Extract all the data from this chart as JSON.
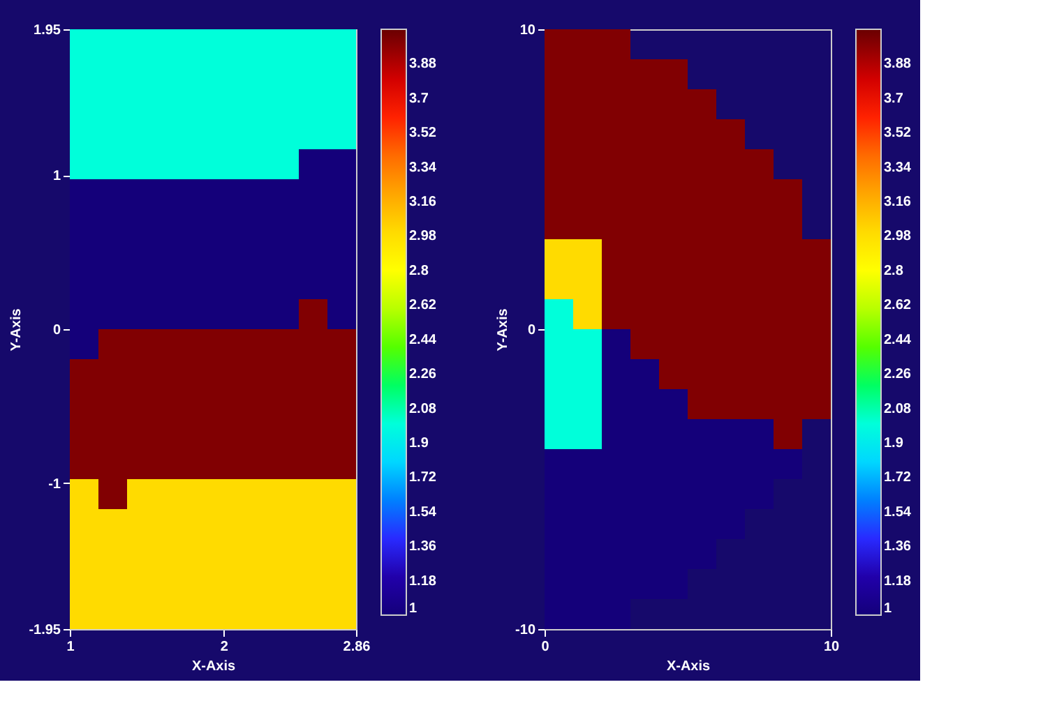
{
  "chart_data": [
    {
      "type": "heatmap",
      "xlabel": "X-Axis",
      "ylabel": "Y-Axis",
      "xlim": [
        1,
        2.86
      ],
      "ylim": [
        -1.95,
        1.95
      ],
      "xticks": [
        1,
        2,
        2.86
      ],
      "yticks": [
        -1.95,
        -1,
        0,
        1,
        1.95
      ],
      "grid": false,
      "clim": [
        1,
        4.06
      ],
      "cticks": [
        1,
        1.18,
        1.36,
        1.54,
        1.72,
        1.9,
        2.08,
        2.26,
        2.44,
        2.62,
        2.8,
        2.98,
        3.16,
        3.34,
        3.52,
        3.7,
        3.88
      ],
      "colors": [
        "#14007a",
        "#1e00a0",
        "#3a00ff",
        "#0060ff",
        "#00b4ff",
        "#00ffff",
        "#00ffb4",
        "#00ff00",
        "#60ff00",
        "#c0ff00",
        "#ffff00",
        "#ffe000",
        "#ffb000",
        "#ff8000",
        "#ff3000",
        "#ff0000",
        "#b00000",
        "#6a0000"
      ],
      "cells": [
        [
          2,
          2,
          2,
          2,
          2,
          2,
          2,
          2,
          2,
          2
        ],
        [
          2,
          2,
          2,
          2,
          2,
          2,
          2,
          2,
          2,
          2
        ],
        [
          2,
          2,
          2,
          2,
          2,
          2,
          2,
          2,
          2,
          2
        ],
        [
          2,
          2,
          2,
          2,
          2,
          2,
          2,
          2,
          2,
          2
        ],
        [
          2,
          2,
          2,
          2,
          2,
          2,
          2,
          2,
          1,
          1
        ],
        [
          1,
          1,
          1,
          1,
          1,
          1,
          1,
          1,
          1,
          1
        ],
        [
          1,
          1,
          1,
          1,
          1,
          1,
          1,
          1,
          1,
          1
        ],
        [
          1,
          1,
          1,
          1,
          1,
          1,
          1,
          1,
          1,
          1
        ],
        [
          1,
          1,
          1,
          1,
          1,
          1,
          1,
          1,
          1,
          1
        ],
        [
          1,
          1,
          1,
          1,
          1,
          1,
          1,
          1,
          4,
          1
        ],
        [
          1,
          4,
          4,
          4,
          4,
          4,
          4,
          4,
          4,
          4
        ],
        [
          4,
          4,
          4,
          4,
          4,
          4,
          4,
          4,
          4,
          4
        ],
        [
          4,
          4,
          4,
          4,
          4,
          4,
          4,
          4,
          4,
          4
        ],
        [
          4,
          4,
          4,
          4,
          4,
          4,
          4,
          4,
          4,
          4
        ],
        [
          4,
          4,
          4,
          4,
          4,
          4,
          4,
          4,
          4,
          4
        ],
        [
          3,
          4,
          3,
          3,
          3,
          3,
          3,
          3,
          3,
          3
        ],
        [
          3,
          3,
          3,
          3,
          3,
          3,
          3,
          3,
          3,
          3
        ],
        [
          3,
          3,
          3,
          3,
          3,
          3,
          3,
          3,
          3,
          3
        ],
        [
          3,
          3,
          3,
          3,
          3,
          3,
          3,
          3,
          3,
          3
        ],
        [
          3,
          3,
          3,
          3,
          3,
          3,
          3,
          3,
          3,
          3
        ]
      ]
    },
    {
      "type": "heatmap",
      "xlabel": "X-Axis",
      "ylabel": "Y-Axis",
      "xlim": [
        0,
        10
      ],
      "ylim": [
        -10,
        10
      ],
      "xticks": [
        0,
        10
      ],
      "yticks": [
        -10,
        0,
        10
      ],
      "grid": false,
      "clim": [
        1,
        4.06
      ],
      "cticks": [
        1,
        1.18,
        1.36,
        1.54,
        1.72,
        1.9,
        2.08,
        2.26,
        2.44,
        2.62,
        2.8,
        2.98,
        3.16,
        3.34,
        3.52,
        3.7,
        3.88
      ],
      "colors": [
        "#14007a",
        "#1e00a0",
        "#3a00ff",
        "#0060ff",
        "#00b4ff",
        "#00ffff",
        "#00ffb4",
        "#00ff00",
        "#60ff00",
        "#c0ff00",
        "#ffff00",
        "#ffe000",
        "#ffb000",
        "#ff8000",
        "#ff3000",
        "#ff0000",
        "#b00000",
        "#6a0000"
      ],
      "cells": [
        [
          4,
          4,
          4,
          null,
          null,
          null,
          null,
          null,
          null,
          null
        ],
        [
          4,
          4,
          4,
          4,
          4,
          null,
          null,
          null,
          null,
          null
        ],
        [
          4,
          4,
          4,
          4,
          4,
          4,
          null,
          null,
          null,
          null
        ],
        [
          4,
          4,
          4,
          4,
          4,
          4,
          4,
          null,
          null,
          null
        ],
        [
          4,
          4,
          4,
          4,
          4,
          4,
          4,
          4,
          null,
          null
        ],
        [
          4,
          4,
          4,
          4,
          4,
          4,
          4,
          4,
          4,
          null
        ],
        [
          4,
          4,
          4,
          4,
          4,
          4,
          4,
          4,
          4,
          null
        ],
        [
          3,
          3,
          4,
          4,
          4,
          4,
          4,
          4,
          4,
          4
        ],
        [
          3,
          3,
          4,
          4,
          4,
          4,
          4,
          4,
          4,
          4
        ],
        [
          2,
          3,
          4,
          4,
          4,
          4,
          4,
          4,
          4,
          4
        ],
        [
          2,
          2,
          1,
          4,
          4,
          4,
          4,
          4,
          4,
          4
        ],
        [
          2,
          2,
          1,
          1,
          4,
          4,
          4,
          4,
          4,
          4
        ],
        [
          2,
          2,
          1,
          1,
          1,
          4,
          4,
          4,
          4,
          4
        ],
        [
          2,
          2,
          1,
          1,
          1,
          1,
          1,
          1,
          4,
          null
        ],
        [
          1,
          1,
          1,
          1,
          1,
          1,
          1,
          1,
          1,
          null
        ],
        [
          1,
          1,
          1,
          1,
          1,
          1,
          1,
          1,
          null,
          null
        ],
        [
          1,
          1,
          1,
          1,
          1,
          1,
          1,
          null,
          null,
          null
        ],
        [
          1,
          1,
          1,
          1,
          1,
          1,
          null,
          null,
          null,
          null
        ],
        [
          1,
          1,
          1,
          1,
          1,
          null,
          null,
          null,
          null,
          null
        ],
        [
          1,
          1,
          1,
          null,
          null,
          null,
          null,
          null,
          null,
          null
        ]
      ]
    }
  ]
}
